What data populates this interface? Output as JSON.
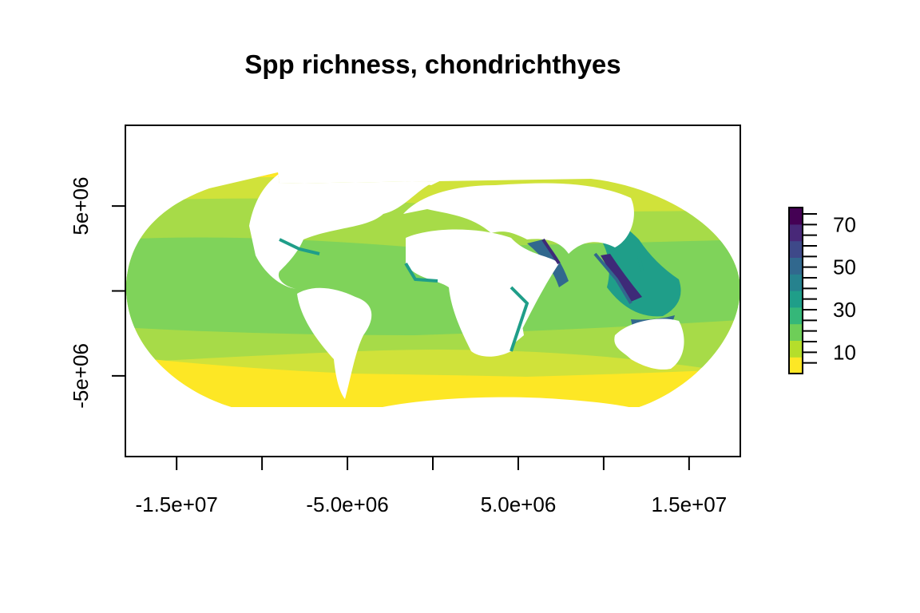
{
  "title": "Spp richness, chondrichthyes",
  "x_axis": {
    "ticks": [
      -15000000,
      -10000000,
      -5000000,
      0,
      5000000,
      10000000,
      15000000
    ],
    "tick_labels": [
      "-1.5e+07",
      "-5.0e+06",
      "5.0e+06",
      "1.5e+07"
    ],
    "labeled_tick_values": [
      -15000000,
      -5000000,
      5000000,
      15000000
    ],
    "range": [
      -18000000,
      18000000
    ]
  },
  "y_axis": {
    "ticks": [
      -5000000,
      0,
      5000000
    ],
    "tick_labels": [
      "-5e+06",
      "5e+06"
    ],
    "labeled_tick_values": [
      -5000000,
      5000000
    ],
    "range": [
      -9750000,
      9750000
    ]
  },
  "legend": {
    "position": "right",
    "range": [
      0,
      78
    ],
    "tick_values": [
      10,
      30,
      50,
      70
    ],
    "tick_labels": [
      "10",
      "30",
      "50",
      "70"
    ],
    "palette": [
      "#fde725",
      "#b5de2b",
      "#6ece58",
      "#35b779",
      "#1f9e89",
      "#26828e",
      "#31688e",
      "#3e4989",
      "#482878",
      "#440154"
    ]
  },
  "map": {
    "projection": "Mollweide-like equal-area (meters)",
    "ocean_colors": {
      "polar": "#fde725",
      "temperate": "#d0e23a",
      "subtropical": "#a7db48",
      "tropical": "#7fd35a",
      "coastal_high": "#1f9e89",
      "hotspot": "#31688e",
      "peak": "#3e2a78"
    },
    "land_color": "#ffffff"
  }
}
